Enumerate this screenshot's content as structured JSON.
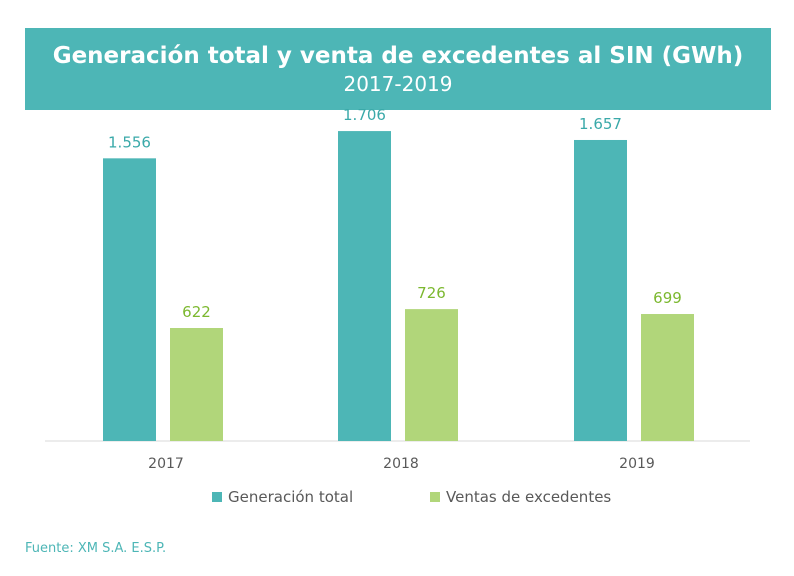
{
  "header": {
    "title": "Generación total y venta de excedentes al SIN (GWh)",
    "subtitle": "2017-2019"
  },
  "chart_data": {
    "type": "bar",
    "title": "Generación total y venta de excedentes al SIN (GWh)",
    "subtitle": "2017-2019",
    "categories": [
      "2017",
      "2018",
      "2019"
    ],
    "series": [
      {
        "name": "Generación total",
        "values": [
          1556,
          1706,
          1657
        ],
        "labels": [
          "1.556",
          "1.706",
          "1.657"
        ],
        "color": "#4db6b6",
        "label_color": "#3aa9a9"
      },
      {
        "name": "Ventas de excedentes",
        "values": [
          622,
          726,
          699
        ],
        "labels": [
          "622",
          "726",
          "699"
        ],
        "color": "#b1d67a",
        "label_color": "#7cb82f"
      }
    ],
    "ylim": [
      0,
      1800
    ],
    "legend_position": "bottom",
    "grid": false
  },
  "footer": {
    "source": "Fuente: XM S.A. E.S.P."
  },
  "colors": {
    "accent": "#4db6b6",
    "secondary": "#b1d67a",
    "axis": "#d9d9d9",
    "tick_text": "#595959"
  }
}
